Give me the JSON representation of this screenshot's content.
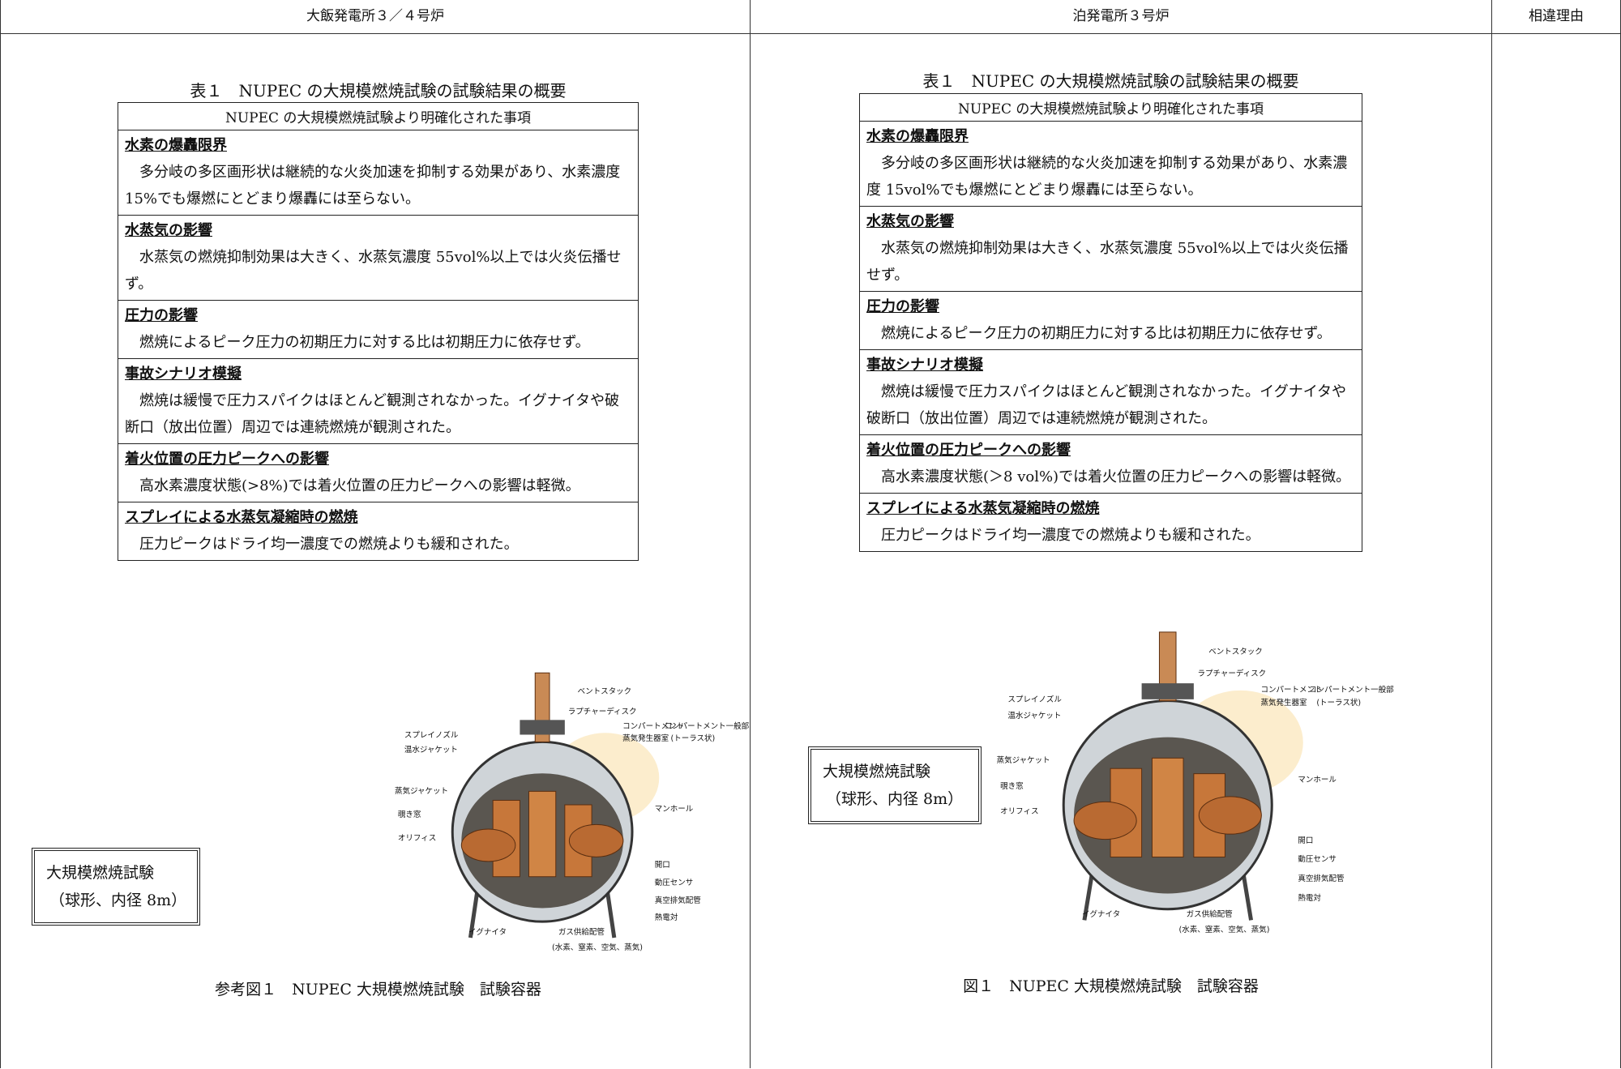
{
  "header": {
    "columns": [
      "大飯発電所３／４号炉",
      "泊発電所３号炉",
      "相違理由"
    ]
  },
  "left": {
    "table": {
      "caption": "表１　NUPEC の大規模燃焼試験の試験結果の概要",
      "head": "NUPEC の大規模燃焼試験より明確化された事項",
      "sections": [
        {
          "title": "水素の爆轟限界",
          "body": "多分岐の多区画形状は継続的な火炎加速を抑制する効果があり、水素濃度 15%でも爆燃にとどまり爆轟には至らない。"
        },
        {
          "title": "水蒸気の影響",
          "body": "水蒸気の燃焼抑制効果は大きく、水蒸気濃度 55vol%以上では火炎伝播せず。"
        },
        {
          "title": "圧力の影響",
          "body": "燃焼によるピーク圧力の初期圧力に対する比は初期圧力に依存せず。"
        },
        {
          "title": "事故シナリオ模擬",
          "body": "燃焼は緩慢で圧力スパイクはほとんど観測されなかった。イグナイタや破断口（放出位置）周辺では連続燃焼が観測された。"
        },
        {
          "title": "着火位置の圧力ピークへの影響",
          "body": "高水素濃度状態(>8%)では着火位置の圧力ピークへの影響は軽微。"
        },
        {
          "title": "スプレイによる水蒸気凝縮時の燃焼",
          "body": "圧力ピークはドライ均一濃度での燃焼よりも緩和された。"
        }
      ]
    },
    "callout": [
      "大規模燃焼試験",
      "（球形、内径 8m）"
    ],
    "figure": {
      "labels": [
        "ベントスタック",
        "ラプチャーディスク",
        "コンパートメント",
        "蒸気発生器室",
        "コンパートメント一般部",
        "(トーラス状)",
        "スプレイノズル",
        "温水ジャケット",
        "蒸気ジャケット",
        "覗き窓",
        "オリフィス",
        "マンホール",
        "開口",
        "動圧センサ",
        "真空排気配管",
        "熱電対",
        "イグナイタ",
        "ガス供給配管",
        "(水素、窒素、空気、蒸気)"
      ],
      "caption": "参考図１　NUPEC 大規模燃焼試験　試験容器"
    }
  },
  "right": {
    "table": {
      "caption": "表１　NUPEC の大規模燃焼試験の試験結果の概要",
      "head": "NUPEC の大規模燃焼試験より明確化された事項",
      "sections": [
        {
          "title": "水素の爆轟限界",
          "body": "多分岐の多区画形状は継続的な火炎加速を抑制する効果があり、水素濃度 15vol%でも爆燃にとどまり爆轟には至らない。"
        },
        {
          "title": "水蒸気の影響",
          "body": "水蒸気の燃焼抑制効果は大きく、水蒸気濃度 55vol%以上では火炎伝播せず。"
        },
        {
          "title": "圧力の影響",
          "body": "燃焼によるピーク圧力の初期圧力に対する比は初期圧力に依存せず。"
        },
        {
          "title": "事故シナリオ模擬",
          "body": "燃焼は緩慢で圧力スパイクはほとんど観測されなかった。イグナイタや破断口（放出位置）周辺では連続燃焼が観測された。"
        },
        {
          "title": "着火位置の圧力ピークへの影響",
          "body": "高水素濃度状態(＞8 vol%)では着火位置の圧力ピークへの影響は軽微。"
        },
        {
          "title": "スプレイによる水蒸気凝縮時の燃焼",
          "body": "圧力ピークはドライ均一濃度での燃焼よりも緩和された。"
        }
      ]
    },
    "callout": [
      "大規模燃焼試験",
      "（球形、内径 8m）"
    ],
    "figure": {
      "labels": [
        "ベントスタック",
        "ラプチャーディスク",
        "コンパートメント",
        "蒸気発生器室",
        "コンパートメント一般部",
        "(トーラス状)",
        "スプレイノズル",
        "温水ジャケット",
        "蒸気ジャケット",
        "覗き窓",
        "オリフィス",
        "マンホール",
        "開口",
        "動圧センサ",
        "真空排気配管",
        "熱電対",
        "イグナイタ",
        "ガス供給配管",
        "(水素、窒素、空気、蒸気)"
      ],
      "caption": "図１　NUPEC 大規模燃焼試験　試験容器"
    }
  }
}
